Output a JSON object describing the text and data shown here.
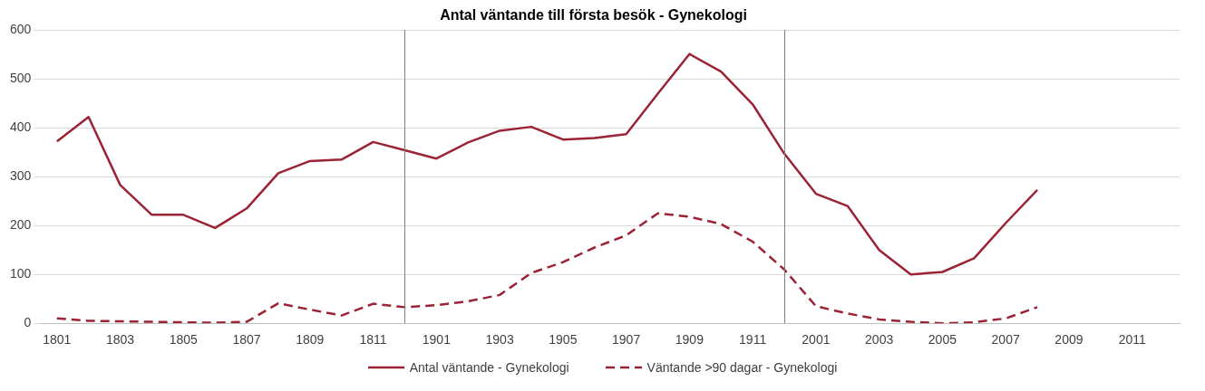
{
  "chart_data": {
    "type": "line",
    "title": "Antal väntande till första besök - Gynekologi",
    "categories": [
      "1801",
      null,
      "1803",
      null,
      "1805",
      null,
      "1807",
      null,
      "1809",
      null,
      "1811",
      null,
      "1901",
      null,
      "1903",
      null,
      "1905",
      null,
      "1907",
      null,
      "1909",
      null,
      "1911",
      null,
      "2001",
      null,
      "2003",
      null,
      "2005",
      null,
      "2007",
      null,
      "2009",
      null,
      "2011",
      null
    ],
    "series": [
      {
        "name": "Antal väntande - Gynekologi",
        "color": "#9b2335",
        "line_style": "solid",
        "values": [
          372,
          422,
          283,
          222,
          222,
          195,
          235,
          307,
          332,
          335,
          371,
          354,
          337,
          370,
          394,
          402,
          376,
          379,
          387,
          470,
          551,
          515,
          448,
          347,
          265,
          240,
          150,
          100,
          105,
          133,
          205,
          273,
          null,
          null,
          null,
          null
        ]
      },
      {
        "name": "Väntande >90 dagar - Gynekologi",
        "color": "#9b2335",
        "line_style": "dashed",
        "values": [
          10,
          5,
          4,
          3,
          2,
          1,
          3,
          41,
          28,
          16,
          40,
          33,
          37,
          45,
          58,
          103,
          125,
          155,
          180,
          225,
          218,
          203,
          167,
          110,
          35,
          20,
          8,
          3,
          0,
          2,
          10,
          33,
          null,
          null,
          null,
          null
        ]
      }
    ],
    "ylim": [
      0,
      600
    ],
    "yticks": [
      0,
      100,
      200,
      300,
      400,
      500,
      600
    ],
    "grid": "y",
    "legend": "bottom",
    "marker": "none"
  }
}
